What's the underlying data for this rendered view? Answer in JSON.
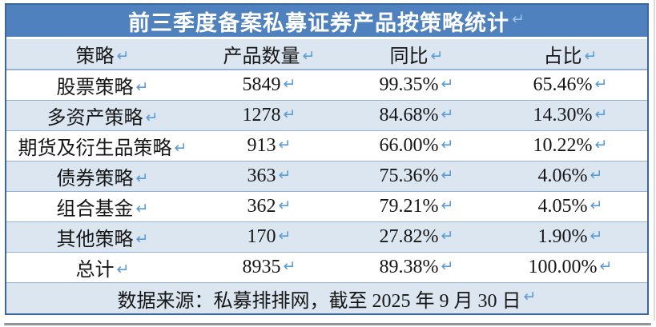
{
  "table": {
    "title": "前三季度备案私募证券产品按策略统计",
    "columns": [
      "策略",
      "产品数量",
      "同比",
      "占比"
    ],
    "rows": [
      {
        "strategy": "股票策略",
        "count": "5849",
        "yoy": "99.35%",
        "share": "65.46%"
      },
      {
        "strategy": "多资产策略",
        "count": "1278",
        "yoy": "84.68%",
        "share": "14.30%"
      },
      {
        "strategy": "期货及衍生品策略",
        "count": "913",
        "yoy": "66.00%",
        "share": "10.22%"
      },
      {
        "strategy": "债券策略",
        "count": "363",
        "yoy": "75.36%",
        "share": "4.06%"
      },
      {
        "strategy": "组合基金",
        "count": "362",
        "yoy": "79.21%",
        "share": "4.05%"
      },
      {
        "strategy": "其他策略",
        "count": "170",
        "yoy": "27.82%",
        "share": "1.90%"
      },
      {
        "strategy": "总计",
        "count": "8935",
        "yoy": "89.38%",
        "share": "100.00%"
      }
    ],
    "footer": "数据来源：私募排排网，截至 2025 年 9 月 30 日",
    "paragraph_mark": "↵"
  },
  "chart_data": {
    "type": "table",
    "title": "前三季度备案私募证券产品按策略统计",
    "columns": [
      "策略",
      "产品数量",
      "同比",
      "占比"
    ],
    "rows": [
      [
        "股票策略",
        5849,
        "99.35%",
        "65.46%"
      ],
      [
        "多资产策略",
        1278,
        "84.68%",
        "14.30%"
      ],
      [
        "期货及衍生品策略",
        913,
        "66.00%",
        "10.22%"
      ],
      [
        "债券策略",
        363,
        "75.36%",
        "4.06%"
      ],
      [
        "组合基金",
        362,
        "79.21%",
        "4.05%"
      ],
      [
        "其他策略",
        170,
        "27.82%",
        "1.90%"
      ],
      [
        "总计",
        8935,
        "89.38%",
        "100.00%"
      ]
    ],
    "source_note": "数据来源：私募排排网，截至 2025 年 9 月 30 日"
  },
  "colors": {
    "title-bg": "#4e81bd",
    "band-bg": "#dce6f1",
    "border-outer": "#3a679c",
    "border-inner": "#95b3d7",
    "mark-color": "#5b9bd5",
    "title-mark": "#9dc3e6"
  }
}
